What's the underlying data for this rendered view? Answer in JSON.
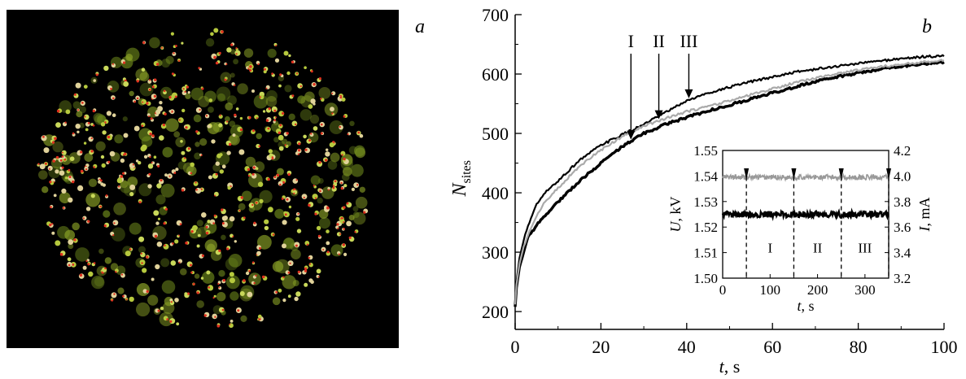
{
  "panel_a": {
    "label": "a",
    "image_description": "micrograph-discharge-sites"
  },
  "panel_b": {
    "label": "b"
  },
  "chart_data": [
    {
      "type": "line",
      "panel": "b",
      "title": "",
      "xlabel": "t, s",
      "ylabel": "N_sites",
      "xlim": [
        0,
        100
      ],
      "ylim": [
        170,
        700
      ],
      "xticks": [
        0,
        20,
        40,
        60,
        80,
        100
      ],
      "yticks": [
        200,
        300,
        400,
        500,
        600,
        700
      ],
      "series": [
        {
          "color": "#000000",
          "width": "thick",
          "x": [
            0,
            0.3,
            1,
            2,
            3,
            5,
            7,
            10,
            15,
            20,
            25,
            30,
            35,
            40,
            45,
            50,
            55,
            60,
            65,
            70,
            75,
            80,
            85,
            90,
            95,
            100
          ],
          "y": [
            208,
            240,
            275,
            300,
            325,
            345,
            362,
            385,
            420,
            450,
            478,
            500,
            515,
            527,
            538,
            548,
            558,
            568,
            578,
            587,
            595,
            602,
            608,
            613,
            617,
            620
          ]
        },
        {
          "color": "#000000",
          "width": "medium",
          "x": [
            0,
            0.3,
            1,
            2,
            3,
            5,
            7,
            10,
            15,
            20,
            25,
            30,
            35,
            40,
            45,
            50,
            55,
            60,
            65,
            70,
            75,
            80,
            85,
            90,
            95,
            100
          ],
          "y": [
            210,
            250,
            290,
            320,
            345,
            380,
            400,
            420,
            455,
            480,
            498,
            515,
            535,
            555,
            568,
            578,
            587,
            595,
            603,
            608,
            613,
            618,
            622,
            626,
            629,
            630
          ]
        },
        {
          "color": "#aaaaaa",
          "width": "medium",
          "x": [
            0,
            0.3,
            1,
            2,
            3,
            5,
            7,
            10,
            15,
            20,
            25,
            30,
            35,
            40,
            45,
            50,
            55,
            60,
            65,
            70,
            75,
            80,
            85,
            90,
            95,
            100
          ],
          "y": [
            212,
            245,
            280,
            310,
            330,
            360,
            385,
            408,
            445,
            472,
            495,
            512,
            525,
            537,
            545,
            555,
            565,
            575,
            585,
            593,
            600,
            607,
            612,
            616,
            620,
            623
          ]
        }
      ],
      "annotations": [
        {
          "text": "I",
          "x": 27
        },
        {
          "text": "II",
          "x": 33.5
        },
        {
          "text": "III",
          "x": 40.5
        }
      ]
    },
    {
      "type": "line",
      "panel": "b-inset",
      "title": "",
      "xlabel": "t, s",
      "ylabel_left": "U, kV",
      "ylabel_right": "I, mA",
      "xlim": [
        0,
        350
      ],
      "ylim_left": [
        1.5,
        1.55
      ],
      "ylim_right": [
        3.2,
        4.2
      ],
      "xticks": [
        0,
        100,
        200,
        300
      ],
      "yticks_left": [
        "1.50",
        "1.51",
        "1.52",
        "1.53",
        "1.54",
        "1.55"
      ],
      "yticks_right": [
        "3.2",
        "3.4",
        "3.6",
        "3.8",
        "4.0",
        "4.2"
      ],
      "series": [
        {
          "axis": "right",
          "color": "#999999",
          "mean": 3.99,
          "x_range": [
            0,
            350
          ]
        },
        {
          "axis": "left",
          "color": "#000000",
          "mean": 1.525,
          "x_range": [
            0,
            350
          ]
        }
      ],
      "vlines_x": [
        50,
        150,
        250,
        350
      ],
      "regions": [
        {
          "text": "I",
          "x": 100
        },
        {
          "text": "II",
          "x": 200
        },
        {
          "text": "III",
          "x": 300
        }
      ]
    }
  ]
}
